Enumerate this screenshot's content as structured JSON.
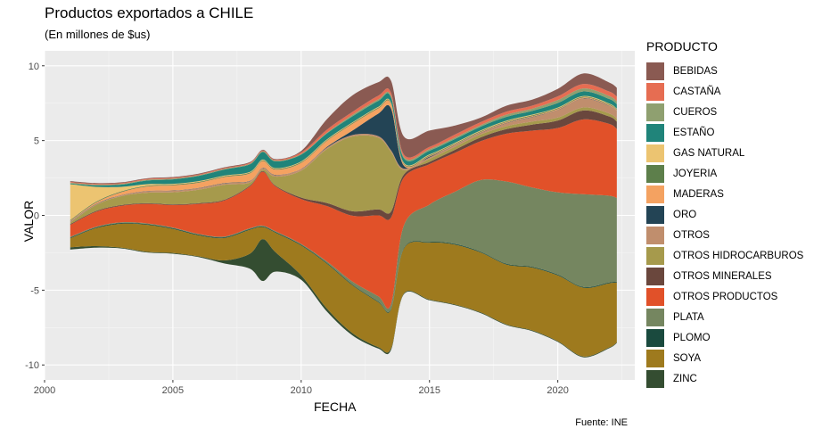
{
  "chart_data": {
    "type": "area",
    "title": "Productos exportados a CHILE",
    "subtitle": "(En millones de $us)",
    "xlabel": "FECHA",
    "ylabel": "VALOR",
    "caption": "Fuente: INE",
    "legend_title": "PRODUCTO",
    "legend_position": "right",
    "grid": true,
    "xlim": [
      2000,
      2023
    ],
    "ylim": [
      -11,
      11
    ],
    "x_ticks": [
      2000,
      2005,
      2010,
      2015,
      2020
    ],
    "y_ticks": [
      -10,
      -5,
      0,
      5,
      10
    ],
    "x": [
      2001,
      2002,
      2003,
      2004,
      2005,
      2006,
      2007,
      2008,
      2008.5,
      2009,
      2010,
      2011,
      2012,
      2013,
      2013.5,
      2014,
      2015,
      2016,
      2017,
      2018,
      2019,
      2020,
      2021,
      2022,
      2022.3
    ],
    "series": [
      {
        "name": "ZINC",
        "color": "#344D31",
        "values": [
          0.15,
          0.1,
          0.05,
          0.05,
          0.05,
          0.05,
          0.2,
          1.0,
          2.8,
          1.3,
          0.3,
          0.2,
          0.15,
          0.1,
          0.1,
          0.05,
          0.05,
          0.05,
          0.05,
          0.05,
          0.05,
          0.05,
          0.05,
          0.05,
          0.05
        ]
      },
      {
        "name": "SOYA",
        "color": "#9E7A1E",
        "values": [
          0.6,
          1.2,
          1.6,
          1.8,
          1.6,
          1.4,
          1.5,
          1.6,
          0.8,
          1.3,
          2.0,
          3.0,
          3.2,
          3.0,
          2.6,
          3.0,
          3.8,
          4.0,
          4.0,
          4.0,
          4.2,
          4.4,
          4.6,
          4.3,
          4.0
        ]
      },
      {
        "name": "PLOMO",
        "color": "#1A4A3E",
        "values": [
          0.05,
          0.05,
          0.05,
          0.05,
          0.05,
          0.05,
          0.05,
          0.05,
          0.05,
          0.05,
          0.05,
          0.05,
          0.05,
          0.05,
          0.05,
          0.05,
          0.05,
          0.05,
          0.05,
          0.05,
          0.05,
          0.05,
          0.05,
          0.05,
          0.05
        ]
      },
      {
        "name": "PLATA",
        "color": "#758660",
        "values": [
          0.05,
          0.05,
          0.05,
          0.05,
          0.05,
          0.05,
          0.05,
          0.05,
          0.05,
          0.05,
          0.05,
          0.1,
          0.2,
          0.35,
          0.3,
          1.5,
          2.5,
          3.5,
          4.8,
          5.5,
          5.3,
          5.5,
          6.2,
          5.8,
          5.6
        ]
      },
      {
        "name": "OTROS PRODUCTOS",
        "color": "#E15129",
        "values": [
          0.8,
          1.0,
          1.1,
          1.3,
          1.5,
          2.0,
          2.4,
          2.8,
          3.6,
          3.0,
          3.0,
          3.7,
          4.4,
          5.4,
          5.8,
          3.2,
          2.7,
          2.6,
          2.6,
          3.2,
          3.8,
          4.3,
          5.0,
          4.8,
          4.6
        ]
      },
      {
        "name": "OTROS MINERALES",
        "color": "#6A473D",
        "values": [
          0.05,
          0.05,
          0.05,
          0.05,
          0.05,
          0.05,
          0.05,
          0.05,
          0.05,
          0.05,
          0.1,
          0.2,
          0.3,
          0.4,
          0.4,
          0.2,
          0.15,
          0.2,
          0.25,
          0.3,
          0.4,
          0.5,
          0.6,
          0.5,
          0.5
        ]
      },
      {
        "name": "OTROS HIDROCARBUROS",
        "color": "#A69A4C",
        "values": [
          0.1,
          0.4,
          0.6,
          0.7,
          0.8,
          0.9,
          1.0,
          0.2,
          0.1,
          0.6,
          1.8,
          3.6,
          5.0,
          4.8,
          4.0,
          0.3,
          0.2,
          0.2,
          0.2,
          0.2,
          0.2,
          0.2,
          0.2,
          0.2,
          0.2
        ]
      },
      {
        "name": "OTROS",
        "color": "#C08E6D",
        "values": [
          0.05,
          0.05,
          0.05,
          0.1,
          0.1,
          0.1,
          0.1,
          0.1,
          0.1,
          0.1,
          0.1,
          0.1,
          0.1,
          0.1,
          0.1,
          0.1,
          0.1,
          0.1,
          0.1,
          0.2,
          0.3,
          0.5,
          0.6,
          0.5,
          0.5
        ]
      },
      {
        "name": "ORO",
        "color": "#234455",
        "values": [
          0.02,
          0.02,
          0.02,
          0.02,
          0.02,
          0.02,
          0.02,
          0.02,
          0.02,
          0.02,
          0.02,
          0.05,
          0.3,
          1.5,
          2.8,
          0.2,
          0.05,
          0.02,
          0.02,
          0.02,
          0.02,
          0.02,
          0.02,
          0.02,
          0.02
        ]
      },
      {
        "name": "MADERAS",
        "color": "#F4A261",
        "values": [
          0.05,
          0.1,
          0.2,
          0.3,
          0.35,
          0.35,
          0.4,
          0.5,
          0.45,
          0.35,
          0.4,
          0.4,
          0.45,
          0.35,
          0.3,
          0.1,
          0.05,
          0.05,
          0.05,
          0.05,
          0.05,
          0.05,
          0.05,
          0.05,
          0.05
        ]
      },
      {
        "name": "JOYERIA",
        "color": "#5D7F4B",
        "values": [
          0.05,
          0.05,
          0.05,
          0.05,
          0.05,
          0.05,
          0.05,
          0.05,
          0.05,
          0.05,
          0.05,
          0.05,
          0.05,
          0.05,
          0.05,
          0.05,
          0.05,
          0.05,
          0.05,
          0.05,
          0.05,
          0.05,
          0.05,
          0.05,
          0.05
        ]
      },
      {
        "name": "GAS NATURAL",
        "color": "#ECC471",
        "values": [
          2.4,
          1.0,
          0.3,
          0.1,
          0.05,
          0.05,
          0.05,
          0.05,
          0.05,
          0.05,
          0.05,
          0.05,
          0.05,
          0.05,
          0.05,
          0.05,
          0.05,
          0.05,
          0.05,
          0.05,
          0.05,
          0.05,
          0.05,
          0.05,
          0.05
        ]
      },
      {
        "name": "ESTAÑO",
        "color": "#20847A",
        "values": [
          0.05,
          0.1,
          0.15,
          0.25,
          0.3,
          0.35,
          0.4,
          0.5,
          0.5,
          0.45,
          0.45,
          0.4,
          0.4,
          0.4,
          0.35,
          0.3,
          0.25,
          0.25,
          0.25,
          0.25,
          0.25,
          0.3,
          0.3,
          0.3,
          0.3
        ]
      },
      {
        "name": "CUEROS",
        "color": "#8FA070",
        "values": [
          0.05,
          0.05,
          0.05,
          0.05,
          0.05,
          0.05,
          0.05,
          0.05,
          0.05,
          0.05,
          0.05,
          0.05,
          0.1,
          0.1,
          0.1,
          0.1,
          0.1,
          0.1,
          0.1,
          0.15,
          0.15,
          0.2,
          0.2,
          0.2,
          0.2
        ]
      },
      {
        "name": "CASTAÑA",
        "color": "#E66D52",
        "values": [
          0.05,
          0.05,
          0.05,
          0.05,
          0.05,
          0.05,
          0.05,
          0.05,
          0.05,
          0.05,
          0.1,
          0.2,
          0.2,
          0.25,
          0.2,
          0.15,
          0.15,
          0.2,
          0.2,
          0.2,
          0.2,
          0.25,
          0.3,
          0.3,
          0.3
        ]
      },
      {
        "name": "BEBIDAS",
        "color": "#8A5A52",
        "values": [
          0.05,
          0.05,
          0.05,
          0.05,
          0.05,
          0.05,
          0.05,
          0.05,
          0.05,
          0.05,
          0.1,
          0.7,
          1.1,
          0.9,
          0.8,
          1.2,
          1.1,
          0.6,
          0.3,
          0.4,
          0.4,
          0.5,
          0.7,
          0.6,
          0.6
        ]
      }
    ]
  }
}
